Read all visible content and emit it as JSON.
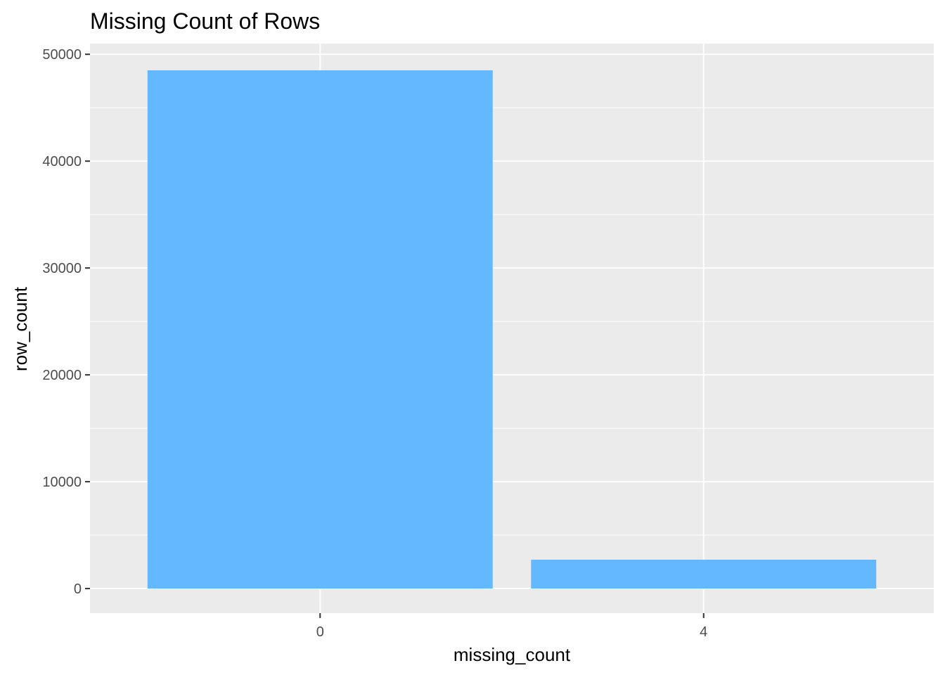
{
  "chart_data": {
    "type": "bar",
    "title": "Missing Count of Rows",
    "xlabel": "missing_count",
    "ylabel": "row_count",
    "categories": [
      "0",
      "4"
    ],
    "values": [
      48500,
      2700
    ],
    "ylim": [
      -2300,
      51000
    ],
    "yticks": [
      0,
      10000,
      20000,
      30000,
      40000,
      50000
    ],
    "ytick_labels": [
      "0",
      "10000",
      "20000",
      "30000",
      "40000",
      "50000"
    ],
    "grid": true,
    "legend": "none",
    "colors": {
      "bar": "#63b8ff",
      "panel": "#ebebeb",
      "grid": "#ffffff",
      "tick_text": "#4d4d4d"
    }
  }
}
